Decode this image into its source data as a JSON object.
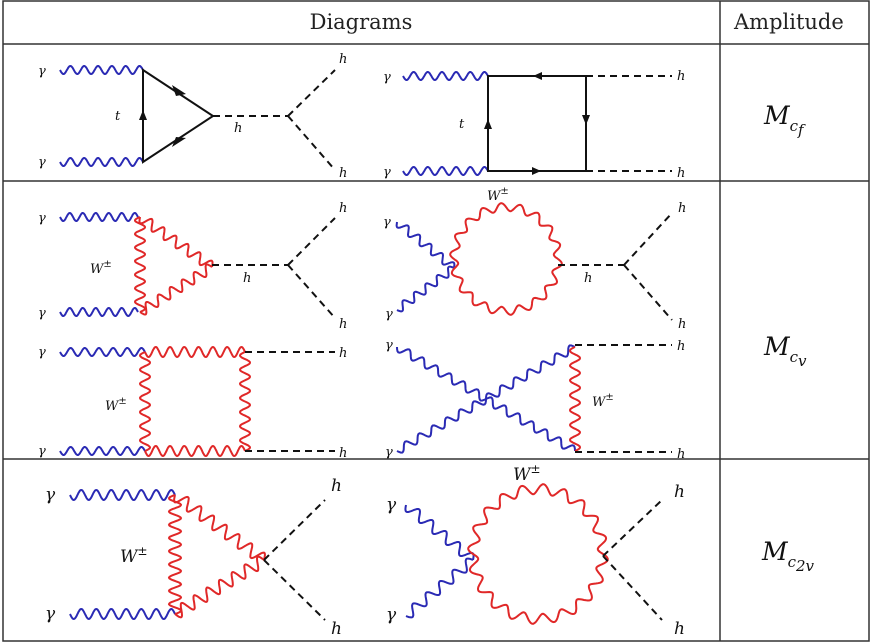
{
  "header": {
    "diagrams": "Diagrams",
    "amplitude": "Amplitude"
  },
  "particles": {
    "photon": "γ",
    "higgs": "h",
    "top": "t",
    "w_base": "W",
    "w_charge": "±"
  },
  "amplitudes": [
    {
      "symbol": "M",
      "sub_main": "c",
      "sub_sub": "f"
    },
    {
      "symbol": "M",
      "sub_main": "c",
      "sub_sub": "v"
    },
    {
      "symbol": "M",
      "sub_main": "c",
      "sub_sub": "2v"
    }
  ],
  "colors": {
    "photon": "#2a2ab4",
    "w_boson": "#e02828",
    "line": "#111111",
    "grid": "#333333"
  }
}
